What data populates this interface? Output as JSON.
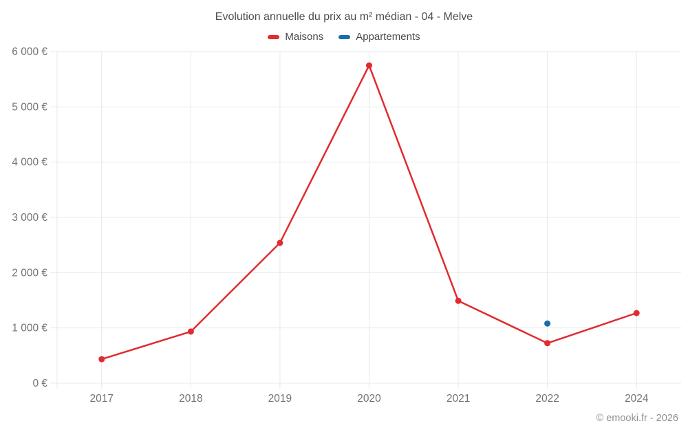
{
  "title": "Evolution annuelle du prix au m² médian - 04 - Melve",
  "legend": {
    "items": [
      {
        "label": "Maisons",
        "color": "#e02b2f"
      },
      {
        "label": "Appartements",
        "color": "#1a6da6"
      }
    ]
  },
  "footer": {
    "credit": "© emooki.fr - 2026"
  },
  "colors": {
    "maisons": "#e02b2f",
    "appartements": "#1a6da6",
    "gridline": "#e8e8e8",
    "axis_text": "#737373",
    "title_text": "#4d4d4d",
    "credit_text": "#8f8f8f"
  },
  "chart_data": {
    "type": "line",
    "title": "Evolution annuelle du prix au m² médian - 04 - Melve",
    "categories": [
      "2017",
      "2018",
      "2019",
      "2020",
      "2021",
      "2022",
      "2024"
    ],
    "series": [
      {
        "name": "Maisons",
        "color": "#e02b2f",
        "values": [
          435,
          935,
          2540,
          5750,
          1490,
          725,
          1270
        ]
      },
      {
        "name": "Appartements",
        "color": "#1a6da6",
        "values": [
          null,
          null,
          null,
          null,
          null,
          1080,
          null
        ]
      }
    ],
    "xlabel": "",
    "ylabel": "",
    "ylim": [
      0,
      6000
    ],
    "yticks": [
      {
        "value": 0,
        "label": "0 €"
      },
      {
        "value": 1000,
        "label": "1 000 €"
      },
      {
        "value": 2000,
        "label": "2 000 €"
      },
      {
        "value": 3000,
        "label": "3 000 €"
      },
      {
        "value": 4000,
        "label": "4 000 €"
      },
      {
        "value": 5000,
        "label": "5 000 €"
      },
      {
        "value": 6000,
        "label": "6 000 €"
      }
    ],
    "grid": true,
    "legend_position": "top",
    "annotations": [
      "© emooki.fr - 2026"
    ]
  }
}
